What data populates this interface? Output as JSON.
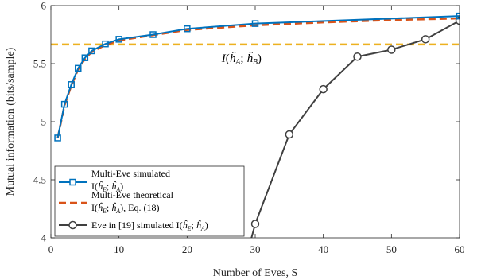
{
  "chart_data": {
    "type": "line",
    "xlabel": "Number of Eves, S",
    "ylabel": "Mutual information (bits/sample)",
    "xlim": [
      0,
      60
    ],
    "ylim": [
      4,
      6
    ],
    "xticks": [
      0,
      10,
      20,
      30,
      40,
      50,
      60
    ],
    "yticks": [
      4,
      4.5,
      5,
      5.5,
      6
    ],
    "xtick_labels": [
      "0",
      "10",
      "20",
      "30",
      "40",
      "50",
      "60"
    ],
    "ytick_labels": [
      "4",
      "4.5",
      "5",
      "5.5",
      "6"
    ],
    "grid": false,
    "legend_position": "bottom-left",
    "annotation": "I(ĥA; ĥB)",
    "series": [
      {
        "legend_lines": [
          "Multi-Eve simulated",
          "I(ĥE; ĥA)"
        ],
        "color": "#0072bd",
        "style": "solid",
        "marker": "square",
        "x": [
          1,
          2,
          3,
          4,
          5,
          6,
          8,
          10,
          15,
          20,
          30,
          60
        ],
        "y": [
          4.86,
          5.15,
          5.32,
          5.46,
          5.55,
          5.61,
          5.67,
          5.71,
          5.75,
          5.8,
          5.845,
          5.91
        ]
      },
      {
        "legend_lines": [
          "Multi-Eve theoretical",
          "I(ĥE; ĥA), Eq. (18)"
        ],
        "color": "#d95319",
        "style": "dashed",
        "marker": "none",
        "x": [
          1,
          2,
          3,
          4,
          5,
          6,
          8,
          10,
          15,
          20,
          30,
          40,
          50,
          60
        ],
        "y": [
          4.86,
          5.14,
          5.31,
          5.45,
          5.54,
          5.6,
          5.66,
          5.7,
          5.745,
          5.79,
          5.83,
          5.855,
          5.875,
          5.89
        ]
      },
      {
        "legend_lines": [
          "Eve in [19] simulated I(ĥE; ĥA)"
        ],
        "color": "#404040",
        "style": "solid",
        "marker": "circle",
        "x": [
          29,
          30,
          35,
          40,
          45,
          50,
          55,
          60
        ],
        "y": [
          3.9,
          4.12,
          4.89,
          5.28,
          5.56,
          5.62,
          5.71,
          5.87
        ]
      },
      {
        "legend_lines": [],
        "color": "#edb120",
        "style": "dashed",
        "marker": "none",
        "x": [
          0,
          60
        ],
        "y": [
          5.665,
          5.665
        ]
      }
    ]
  }
}
